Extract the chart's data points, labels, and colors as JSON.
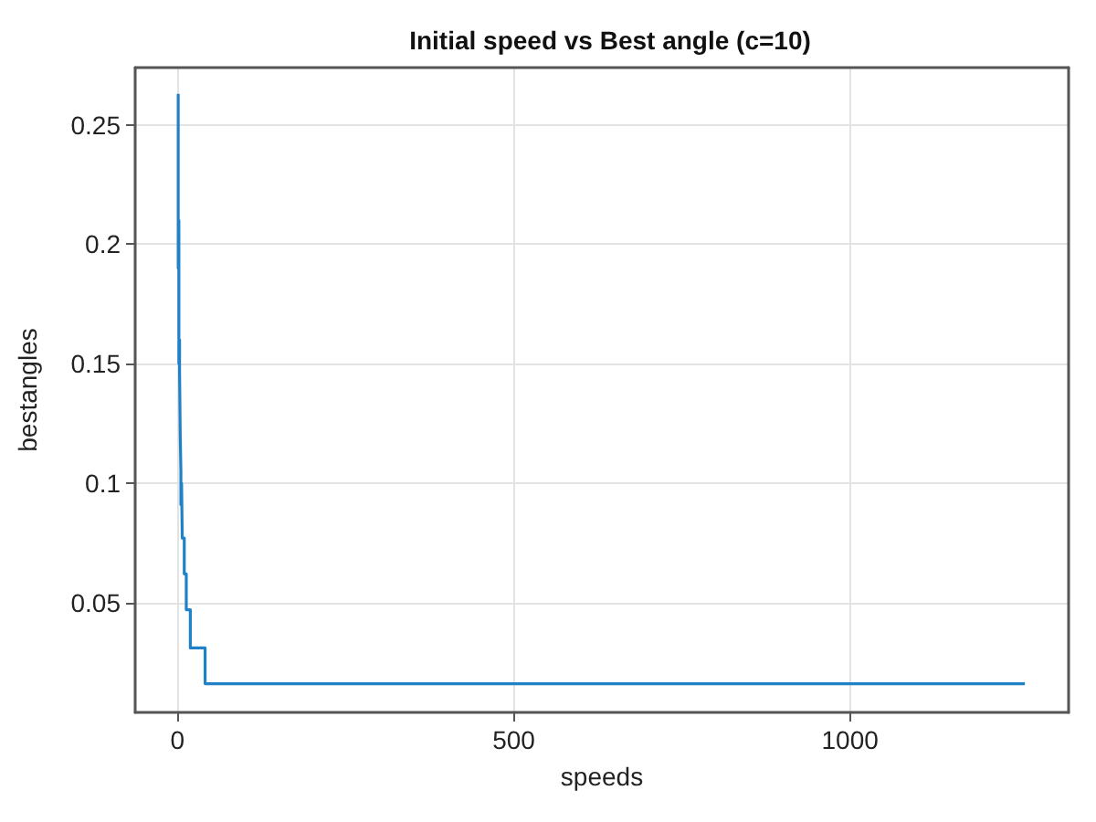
{
  "chart_data": {
    "type": "line",
    "title": "Initial speed vs Best angle (c=10)",
    "xlabel": "speeds",
    "ylabel": "bestangles",
    "series": [
      {
        "color": "#1f82c8",
        "x": [
          1,
          1,
          2,
          2,
          3,
          3,
          4,
          5,
          5,
          6,
          7,
          10,
          10,
          13,
          13,
          19,
          19,
          41,
          41,
          1260
        ],
        "values": [
          0.263,
          0.19,
          0.21,
          0.15,
          0.16,
          0.147,
          0.12,
          0.105,
          0.091,
          0.1,
          0.077,
          0.077,
          0.062,
          0.062,
          0.047,
          0.047,
          0.031,
          0.031,
          0.016,
          0.016
        ]
      }
    ],
    "xlim": [
      -63,
      1325
    ],
    "xticks": [
      0,
      500,
      1000
    ],
    "ylim": [
      0.004,
      0.274
    ],
    "yticks": [
      0.05,
      0.1,
      0.15,
      0.2,
      0.25
    ],
    "grid": true,
    "marker": "none",
    "line_style": "solid"
  }
}
